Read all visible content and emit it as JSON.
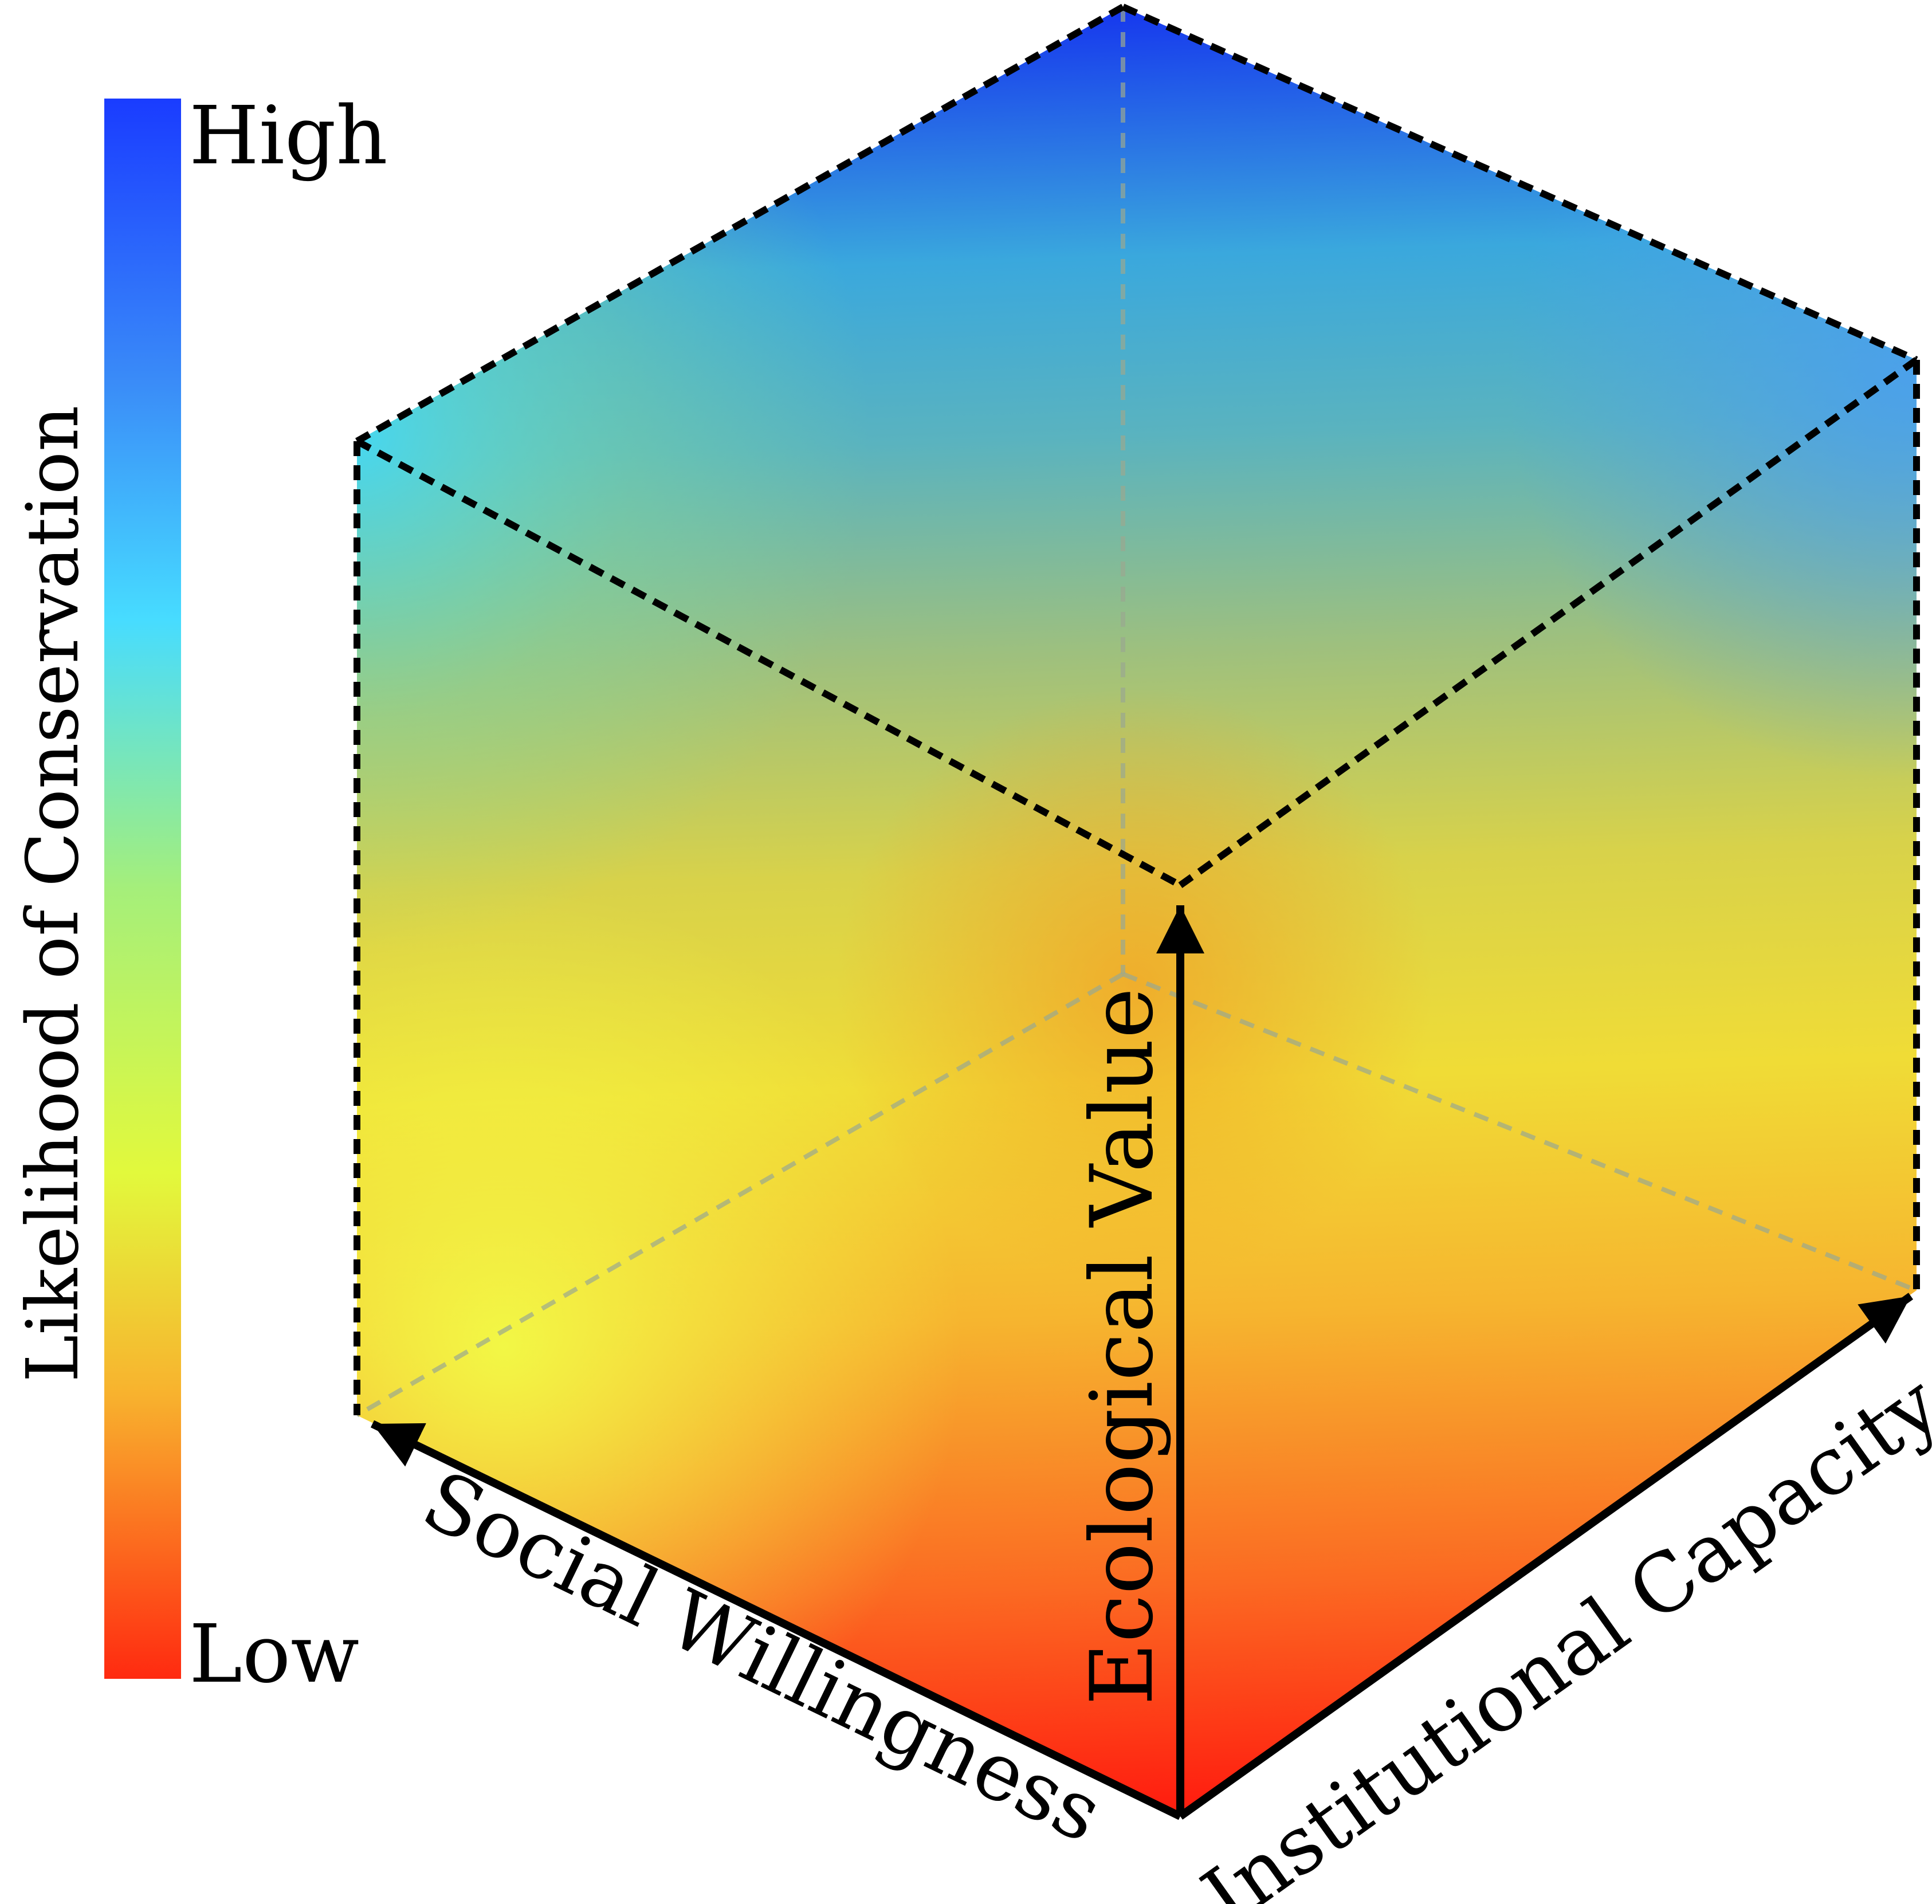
{
  "colorbar": {
    "title": "Likelihood of Conservation",
    "high_label": "High",
    "low_label": "Low",
    "stops": [
      "#1a3cff",
      "#3a8cf8",
      "#47dcff",
      "#a5ef7a",
      "#e2f93c",
      "#f8b22e",
      "#ff2a10"
    ]
  },
  "axes": {
    "vertical": "Ecological Value",
    "left": "Social Willingness",
    "right": "Institutional Capacity"
  },
  "colors": {
    "high": "#1a3cff",
    "mid_cyan": "#47dcff",
    "mid_yellow": "#eef03a",
    "low": "#ff2a10"
  }
}
